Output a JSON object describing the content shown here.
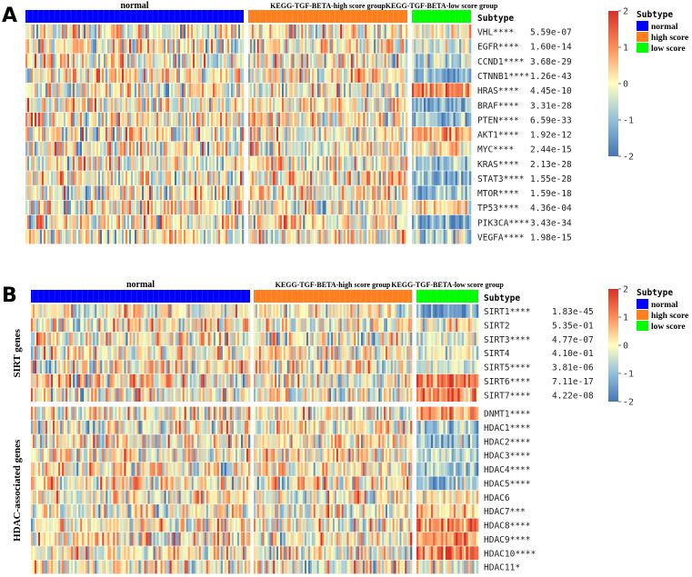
{
  "chart_data": [
    {
      "type": "heatmap",
      "panel_label": "A",
      "subtype_header": "Subtype",
      "groups": [
        {
          "name": "normal",
          "label": "normal",
          "color": "#0000ff"
        },
        {
          "name": "high score",
          "label": "KEGG-TGF-BETA-high score group",
          "color": "#ff7f1e"
        },
        {
          "name": "low score",
          "label": "KEGG-TGF-BETA-low score group",
          "color": "#00ff00"
        }
      ],
      "rows": [
        {
          "gene": "VHL****",
          "pvalue": "5.59e-07",
          "low_shift": 0.0
        },
        {
          "gene": "EGFR****",
          "pvalue": "1.60e-14",
          "low_shift": -0.3
        },
        {
          "gene": "CCND1****",
          "pvalue": "3.68e-29",
          "low_shift": -0.5
        },
        {
          "gene": "CTNNB1****",
          "pvalue": "1.26e-43",
          "low_shift": -1.0
        },
        {
          "gene": "HRAS****",
          "pvalue": "4.45e-10",
          "low_shift": 0.9
        },
        {
          "gene": "BRAF****",
          "pvalue": "3.31e-28",
          "low_shift": -0.9
        },
        {
          "gene": "PTEN****",
          "pvalue": "6.59e-33",
          "low_shift": -0.9
        },
        {
          "gene": "AKT1****",
          "pvalue": "1.92e-12",
          "low_shift": 0.5
        },
        {
          "gene": "MYC****",
          "pvalue": "2.44e-15",
          "low_shift": 0.2
        },
        {
          "gene": "KRAS****",
          "pvalue": "2.13e-28",
          "low_shift": -0.9
        },
        {
          "gene": "STAT3****",
          "pvalue": "1.55e-28",
          "low_shift": -0.9
        },
        {
          "gene": "MTOR****",
          "pvalue": "1.59e-18",
          "low_shift": -0.6
        },
        {
          "gene": "TP53****",
          "pvalue": "4.36e-04",
          "low_shift": 0.3
        },
        {
          "gene": "PIK3CA****",
          "pvalue": "3.43e-34",
          "low_shift": -1.0
        },
        {
          "gene": "VEGFA****",
          "pvalue": "1.98e-15",
          "low_shift": -0.4
        }
      ],
      "colorbar": {
        "min": -2,
        "max": 2,
        "ticks": [
          2,
          1,
          0,
          -1,
          -2
        ],
        "colors": [
          "#4575b4",
          "#91bfdb",
          "#ffffbf",
          "#fc8d59",
          "#d73027"
        ]
      },
      "legend": {
        "title": "Subtype",
        "items": [
          "normal",
          "high score",
          "low score"
        ]
      }
    },
    {
      "type": "heatmap",
      "panel_label": "B",
      "subtype_header": "Subtype",
      "groups": [
        {
          "name": "normal",
          "label": "normal",
          "color": "#0000ff"
        },
        {
          "name": "high score",
          "label": "KEGG-TGF-BETA-high score group",
          "color": "#ff7f1e"
        },
        {
          "name": "low score",
          "label": "KEGG-TGF-BETA-low score group",
          "color": "#00ff00"
        }
      ],
      "row_groups": [
        {
          "label": "SIRT genes",
          "rows": [
            {
              "gene": "SIRT1****",
              "pvalue": "1.83e-45",
              "low_shift": -1.1
            },
            {
              "gene": "SIRT2",
              "pvalue": "5.35e-01",
              "low_shift": 0.0
            },
            {
              "gene": "SIRT3****",
              "pvalue": "4.77e-07",
              "low_shift": -0.3
            },
            {
              "gene": "SIRT4",
              "pvalue": "4.10e-01",
              "low_shift": 0.0
            },
            {
              "gene": "SIRT5****",
              "pvalue": "3.81e-06",
              "low_shift": -0.4
            },
            {
              "gene": "SIRT6****",
              "pvalue": "7.11e-17",
              "low_shift": 1.0
            },
            {
              "gene": "SIRT7****",
              "pvalue": "4.22e-08",
              "low_shift": 0.9
            }
          ]
        },
        {
          "label": "HDAC-associated genes",
          "rows": [
            {
              "gene": "DNMT1****",
              "pvalue": "",
              "low_shift": 0.6
            },
            {
              "gene": "HDAC1****",
              "pvalue": "",
              "low_shift": -0.6
            },
            {
              "gene": "HDAC2****",
              "pvalue": "",
              "low_shift": -0.8
            },
            {
              "gene": "HDAC3****",
              "pvalue": "",
              "low_shift": -0.6
            },
            {
              "gene": "HDAC4****",
              "pvalue": "",
              "low_shift": -0.7
            },
            {
              "gene": "HDAC5****",
              "pvalue": "",
              "low_shift": -0.8
            },
            {
              "gene": "HDAC6",
              "pvalue": "",
              "low_shift": 0.0
            },
            {
              "gene": "HDAC7***",
              "pvalue": "",
              "low_shift": 0.4
            },
            {
              "gene": "HDAC8****",
              "pvalue": "",
              "low_shift": 0.8
            },
            {
              "gene": "HDAC9****",
              "pvalue": "",
              "low_shift": 0.7
            },
            {
              "gene": "HDAC10****",
              "pvalue": "",
              "low_shift": 1.0
            },
            {
              "gene": "HDAC11*",
              "pvalue": "",
              "low_shift": -0.3
            }
          ]
        }
      ],
      "colorbar": {
        "min": -2,
        "max": 2,
        "ticks": [
          2,
          1,
          0,
          -1,
          -2
        ],
        "colors": [
          "#4575b4",
          "#91bfdb",
          "#ffffbf",
          "#fc8d59",
          "#d73027"
        ]
      },
      "legend": {
        "title": "Subtype",
        "items": [
          "normal",
          "high score",
          "low score"
        ]
      }
    }
  ]
}
